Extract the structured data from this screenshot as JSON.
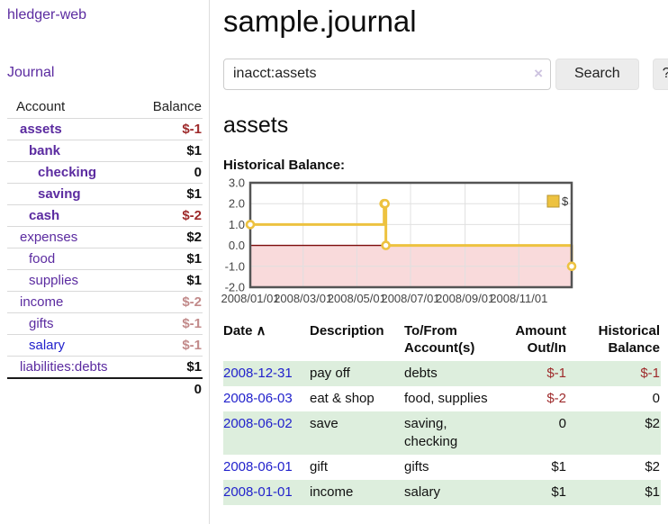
{
  "colors": {
    "purple": "#5b2ba0",
    "blue": "#2222cc",
    "negative": "#9e2a2b",
    "rose": "#c28a8a",
    "row_green": "#ddeedd"
  },
  "sidebar": {
    "app_title": "hledger-web",
    "journal_label": "Journal",
    "accounts_table": {
      "account_header": "Account",
      "balance_header": "Balance",
      "rows": [
        {
          "name": "assets",
          "depth": 1,
          "bold": true,
          "balance": "$-1",
          "balance_color": "negative"
        },
        {
          "name": "bank",
          "depth": 2,
          "bold": true,
          "balance": "$1",
          "balance_color": "normal"
        },
        {
          "name": "checking",
          "depth": 3,
          "bold": true,
          "balance": "0",
          "balance_color": "normal"
        },
        {
          "name": "saving",
          "depth": 3,
          "bold": true,
          "balance": "$1",
          "balance_color": "normal"
        },
        {
          "name": "cash",
          "depth": 2,
          "bold": true,
          "balance": "$-2",
          "balance_color": "negative"
        },
        {
          "name": "expenses",
          "depth": 1,
          "bold": false,
          "balance": "$2",
          "balance_color": "normal"
        },
        {
          "name": "food",
          "depth": 2,
          "bold": false,
          "balance": "$1",
          "balance_color": "normal"
        },
        {
          "name": "supplies",
          "depth": 2,
          "bold": false,
          "balance": "$1",
          "balance_color": "normal"
        },
        {
          "name": "income",
          "depth": 1,
          "bold": false,
          "balance": "$-2",
          "balance_color": "muted"
        },
        {
          "name": "gifts",
          "depth": 2,
          "bold": false,
          "balance": "$-1",
          "balance_color": "muted"
        },
        {
          "name": "salary",
          "depth": 2,
          "bold": false,
          "balance": "$-1",
          "balance_color": "muted",
          "link_style": "blue"
        },
        {
          "name": "liabilities:debts",
          "depth": 1,
          "bold": false,
          "balance": "$1",
          "balance_color": "normal"
        }
      ],
      "total": "0"
    }
  },
  "main": {
    "title": "sample.journal",
    "search": {
      "value": "inacct:assets",
      "clear_icon": "×",
      "search_button_label": "Search",
      "help_button_label": "?"
    },
    "account_heading": "assets",
    "chart_label": "Historical Balance:"
  },
  "chart_data": {
    "type": "line",
    "style": "steps",
    "title": "Historical Balance:",
    "series": [
      {
        "name": "$",
        "color": "#edc240",
        "points": [
          [
            "2008-01-01",
            1
          ],
          [
            "2008-06-01",
            2
          ],
          [
            "2008-06-02",
            2
          ],
          [
            "2008-06-03",
            0
          ],
          [
            "2008-12-31",
            -1
          ]
        ]
      }
    ],
    "x_range": [
      "2008-01-01",
      "2008-12-31"
    ],
    "x_ticks": [
      "2008/01/01",
      "2008/03/01",
      "2008/05/01",
      "2008/07/01",
      "2008/09/01",
      "2008/11/01"
    ],
    "y_ticks": [
      3.0,
      2.0,
      1.0,
      0.0,
      -1.0,
      -2.0
    ],
    "ylim": [
      -2,
      3
    ],
    "grid": true,
    "legend": {
      "position": "top-right",
      "label": "$"
    },
    "negative_region_color": "#f9dadb",
    "zero_line_color": "#7d0b0b",
    "grid_color": "#e0e0e0",
    "border_color": "#545454",
    "tick_label_color": "#444444"
  },
  "transactions": {
    "headers": {
      "date": "Date",
      "sort_indicator": "∧",
      "description": "Description",
      "accounts": "To/From Account(s)",
      "amount": "Amount Out/In",
      "balance": "Historical Balance"
    },
    "rows": [
      {
        "date": "2008-12-31",
        "description": "pay off",
        "accounts": "debts",
        "amount": "$-1",
        "amount_negative": true,
        "balance": "$-1",
        "balance_negative": true,
        "striped": true
      },
      {
        "date": "2008-06-03",
        "description": "eat & shop",
        "accounts": "food, supplies",
        "amount": "$-2",
        "amount_negative": true,
        "balance": "0",
        "balance_negative": false,
        "striped": false
      },
      {
        "date": "2008-06-02",
        "description": "save",
        "accounts": "saving, checking",
        "amount": "0",
        "amount_negative": false,
        "balance": "$2",
        "balance_negative": false,
        "striped": true
      },
      {
        "date": "2008-06-01",
        "description": "gift",
        "accounts": "gifts",
        "amount": "$1",
        "amount_negative": false,
        "balance": "$2",
        "balance_negative": false,
        "striped": false
      },
      {
        "date": "2008-01-01",
        "description": "income",
        "accounts": "salary",
        "amount": "$1",
        "amount_negative": false,
        "balance": "$1",
        "balance_negative": false,
        "striped": true
      }
    ]
  }
}
